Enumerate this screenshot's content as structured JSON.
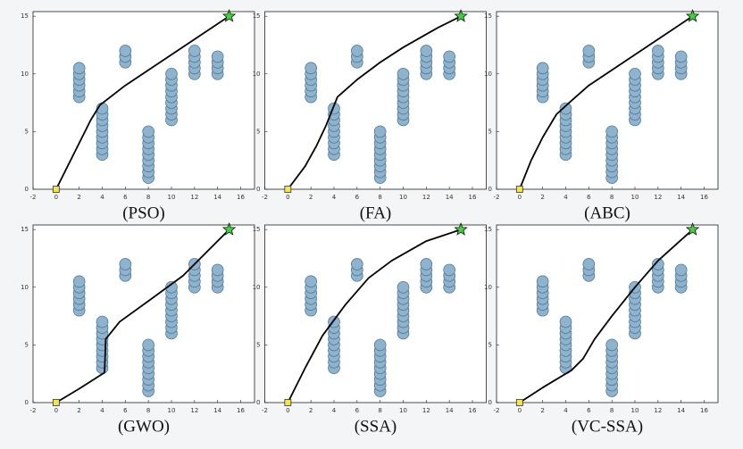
{
  "obstacles": {
    "color": "#8db3cf",
    "x": [
      2,
      2,
      2,
      2,
      2,
      2,
      4,
      4,
      4,
      4,
      4,
      4,
      4,
      4,
      4,
      6,
      6,
      6,
      8,
      8,
      8,
      8,
      8,
      8,
      8,
      8,
      8,
      10,
      10,
      10,
      10,
      10,
      10,
      10,
      10,
      10,
      12,
      12,
      12,
      12,
      12,
      14,
      14,
      14,
      14
    ],
    "y": [
      8,
      8.5,
      9,
      9.5,
      10,
      10.5,
      3,
      3.5,
      4,
      4.5,
      5,
      5.5,
      6,
      6.5,
      7,
      11,
      11.5,
      12,
      1,
      1.5,
      2,
      2.5,
      3,
      3.5,
      4,
      4.5,
      5,
      6,
      6.5,
      7,
      7.5,
      8,
      8.5,
      9,
      9.5,
      10,
      10,
      10.5,
      11,
      11.5,
      12,
      10,
      10.5,
      11,
      11.5
    ]
  },
  "chart_data": [
    {
      "type": "line",
      "title": "(PSO)",
      "xlim": [
        -2,
        17.2
      ],
      "ylim": [
        0,
        15.4
      ],
      "xticks": [
        -2,
        0,
        2,
        4,
        6,
        8,
        10,
        12,
        14,
        16
      ],
      "yticks": [
        0,
        5,
        10,
        15
      ],
      "path": {
        "color": "#000000",
        "x": [
          0,
          1.5,
          3,
          3.8,
          6,
          9,
          12,
          15
        ],
        "y": [
          0,
          3,
          6,
          7.3,
          9,
          11,
          13,
          15
        ]
      },
      "start": {
        "x": 0,
        "y": 0,
        "color": "#f2e64a"
      },
      "goal": {
        "x": 15,
        "y": 15,
        "color": "#3fd23a"
      }
    },
    {
      "type": "line",
      "title": "(FA)",
      "xlim": [
        -2,
        17.2
      ],
      "ylim": [
        0,
        15.4
      ],
      "xticks": [
        -2,
        0,
        2,
        4,
        6,
        8,
        10,
        12,
        14,
        16
      ],
      "yticks": [
        0,
        5,
        10,
        15
      ],
      "path": {
        "color": "#000000",
        "x": [
          0,
          1.5,
          2.5,
          3.3,
          3.7,
          4.3,
          6,
          8,
          10,
          13,
          15
        ],
        "y": [
          0,
          2,
          3.8,
          5.5,
          6.5,
          8,
          9.5,
          11,
          12.3,
          14,
          15
        ]
      },
      "start": {
        "x": 0,
        "y": 0,
        "color": "#f2e64a"
      },
      "goal": {
        "x": 15,
        "y": 15,
        "color": "#3fd23a"
      }
    },
    {
      "type": "line",
      "title": "(ABC)",
      "xlim": [
        -2,
        17.2
      ],
      "ylim": [
        0,
        15.4
      ],
      "xticks": [
        -2,
        0,
        2,
        4,
        6,
        8,
        10,
        12,
        14,
        16
      ],
      "yticks": [
        0,
        5,
        10,
        15
      ],
      "path": {
        "color": "#000000",
        "x": [
          0,
          1,
          2,
          3.2,
          4.3,
          6,
          9,
          12,
          15
        ],
        "y": [
          0,
          2.5,
          4.5,
          6.5,
          7.5,
          9,
          11,
          13,
          15
        ]
      },
      "start": {
        "x": 0,
        "y": 0,
        "color": "#f2e64a"
      },
      "goal": {
        "x": 15,
        "y": 15,
        "color": "#3fd23a"
      }
    },
    {
      "type": "line",
      "title": "(GWO)",
      "xlim": [
        -2,
        17.2
      ],
      "ylim": [
        0,
        15.4
      ],
      "xticks": [
        -2,
        0,
        2,
        4,
        6,
        8,
        10,
        12,
        14,
        16
      ],
      "yticks": [
        0,
        5,
        10,
        15
      ],
      "path": {
        "color": "#000000",
        "x": [
          0,
          2,
          4.2,
          4.3,
          5.5,
          8,
          11,
          13,
          15
        ],
        "y": [
          0,
          1.2,
          2.6,
          5.5,
          7,
          8.8,
          11,
          13,
          15
        ]
      },
      "start": {
        "x": 0,
        "y": 0,
        "color": "#f2e64a"
      },
      "goal": {
        "x": 15,
        "y": 15,
        "color": "#3fd23a"
      }
    },
    {
      "type": "line",
      "title": "(SSA)",
      "xlim": [
        -2,
        17.2
      ],
      "ylim": [
        0,
        15.4
      ],
      "xticks": [
        -2,
        0,
        2,
        4,
        6,
        8,
        10,
        12,
        14,
        16
      ],
      "yticks": [
        0,
        5,
        10,
        15
      ],
      "path": {
        "color": "#000000",
        "x": [
          0,
          1.5,
          3,
          5,
          7,
          9,
          12,
          15
        ],
        "y": [
          0,
          3,
          5.8,
          8.5,
          10.8,
          12.3,
          14,
          15
        ]
      },
      "start": {
        "x": 0,
        "y": 0,
        "color": "#f2e64a"
      },
      "goal": {
        "x": 15,
        "y": 15,
        "color": "#3fd23a"
      }
    },
    {
      "type": "line",
      "title": "(VC-SSA)",
      "xlim": [
        -2,
        17.2
      ],
      "ylim": [
        0,
        15.4
      ],
      "xticks": [
        -2,
        0,
        2,
        4,
        6,
        8,
        10,
        12,
        14,
        16
      ],
      "yticks": [
        0,
        5,
        10,
        15
      ],
      "path": {
        "color": "#000000",
        "x": [
          0,
          2,
          4.5,
          5.5,
          6.5,
          8,
          10,
          12,
          15
        ],
        "y": [
          0,
          1.3,
          2.8,
          3.8,
          5.5,
          7.5,
          10,
          12.3,
          15
        ]
      },
      "start": {
        "x": 0,
        "y": 0,
        "color": "#f2e64a"
      },
      "goal": {
        "x": 15,
        "y": 15,
        "color": "#3fd23a"
      }
    }
  ]
}
